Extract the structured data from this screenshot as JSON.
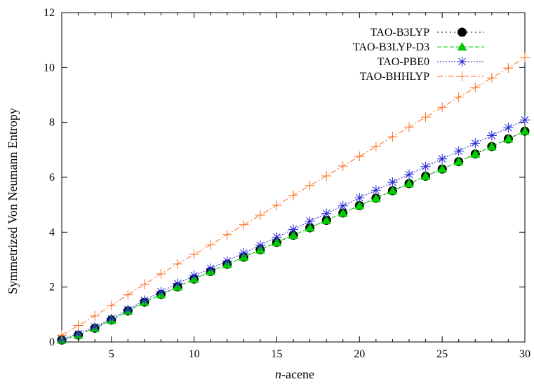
{
  "chart_data": {
    "type": "line",
    "xlabel_italic": "n",
    "xlabel_rest": "-acene",
    "ylabel": "Symmetrized Von Neumann Entropy",
    "xlim": [
      2,
      30
    ],
    "ylim": [
      0,
      12
    ],
    "xticks": [
      5,
      10,
      15,
      20,
      25,
      30
    ],
    "yticks": [
      0,
      2,
      4,
      6,
      8,
      10,
      12
    ],
    "grid": false,
    "legend_position": "top-right",
    "x": [
      2,
      3,
      4,
      5,
      6,
      7,
      8,
      9,
      10,
      11,
      12,
      13,
      14,
      15,
      16,
      17,
      18,
      19,
      20,
      21,
      22,
      23,
      24,
      25,
      26,
      27,
      28,
      29,
      30
    ],
    "series": [
      {
        "name": "TAO-B3LYP",
        "color": "#000000",
        "marker": "filled-circle",
        "dash": "2,4",
        "values": [
          0.07,
          0.25,
          0.5,
          0.8,
          1.13,
          1.45,
          1.73,
          2.01,
          2.29,
          2.57,
          2.83,
          3.09,
          3.36,
          3.63,
          3.89,
          4.16,
          4.43,
          4.7,
          4.97,
          5.24,
          5.51,
          5.77,
          6.04,
          6.3,
          6.57,
          6.85,
          7.12,
          7.4,
          7.68
        ]
      },
      {
        "name": "TAO-B3LYP-D3",
        "color": "#00cc00",
        "marker": "filled-triangle",
        "dash": "6,3",
        "values": [
          0.07,
          0.25,
          0.5,
          0.8,
          1.13,
          1.45,
          1.73,
          2.01,
          2.29,
          2.57,
          2.83,
          3.09,
          3.36,
          3.63,
          3.89,
          4.16,
          4.43,
          4.7,
          4.97,
          5.24,
          5.51,
          5.77,
          6.04,
          6.3,
          6.57,
          6.85,
          7.12,
          7.4,
          7.68
        ]
      },
      {
        "name": "TAO-PBE0",
        "color": "#1f1fd6",
        "marker": "asterisk",
        "dash": "2,2",
        "values": [
          0.1,
          0.3,
          0.55,
          0.85,
          1.18,
          1.52,
          1.83,
          2.13,
          2.42,
          2.68,
          2.95,
          3.24,
          3.52,
          3.82,
          4.1,
          4.4,
          4.68,
          4.96,
          5.25,
          5.53,
          5.82,
          6.1,
          6.39,
          6.67,
          6.95,
          7.24,
          7.52,
          7.81,
          8.09
        ]
      },
      {
        "name": "TAO-BHHLYP",
        "color": "#ff6a1a",
        "marker": "plus",
        "dash": "8,3,2,3",
        "values": [
          0.25,
          0.6,
          0.95,
          1.33,
          1.72,
          2.1,
          2.48,
          2.84,
          3.19,
          3.54,
          3.91,
          4.27,
          4.62,
          4.98,
          5.34,
          5.7,
          6.05,
          6.41,
          6.76,
          7.12,
          7.48,
          7.83,
          8.19,
          8.55,
          8.92,
          9.27,
          9.62,
          9.98,
          10.36
        ]
      }
    ]
  }
}
